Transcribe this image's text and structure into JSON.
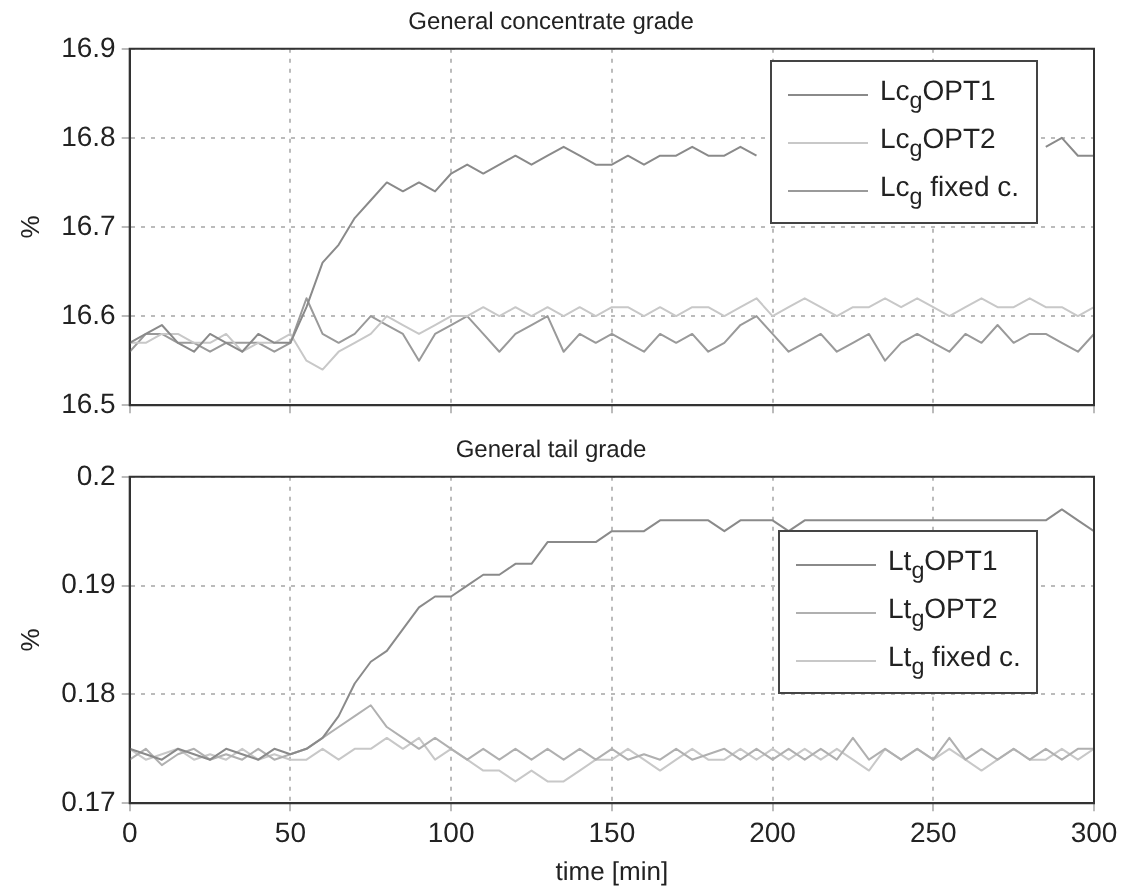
{
  "chart_data": [
    {
      "type": "line",
      "title": "General concentrate grade",
      "ylabel": "%",
      "x": [
        0,
        5,
        10,
        15,
        20,
        25,
        30,
        35,
        40,
        45,
        50,
        55,
        60,
        65,
        70,
        75,
        80,
        85,
        90,
        95,
        100,
        105,
        110,
        115,
        120,
        125,
        130,
        135,
        140,
        145,
        150,
        155,
        160,
        165,
        170,
        175,
        180,
        185,
        190,
        195,
        200,
        205,
        210,
        215,
        220,
        225,
        230,
        235,
        240,
        245,
        250,
        255,
        260,
        265,
        270,
        275,
        280,
        285,
        290,
        295,
        300
      ],
      "xlim": [
        0,
        300
      ],
      "xticks": [
        0,
        50,
        100,
        150,
        200,
        250,
        300
      ],
      "ylim": [
        16.5,
        16.9
      ],
      "yticks": [
        16.5,
        16.6,
        16.7,
        16.8,
        16.9
      ],
      "grid": true,
      "legend": "top right",
      "marker": "none",
      "tick_labels": "y",
      "series": [
        {
          "name": "Lc$_{g}$OPT1",
          "color": "#8a8a8a",
          "values": [
            16.57,
            16.58,
            16.59,
            16.57,
            16.56,
            16.58,
            16.57,
            16.56,
            16.58,
            16.57,
            16.57,
            16.61,
            16.66,
            16.68,
            16.71,
            16.73,
            16.75,
            16.74,
            16.75,
            16.74,
            16.76,
            16.77,
            16.76,
            16.77,
            16.78,
            16.77,
            16.78,
            16.79,
            16.78,
            16.77,
            16.77,
            16.78,
            16.77,
            16.78,
            16.78,
            16.79,
            16.78,
            16.78,
            16.79,
            16.78,
            null,
            null,
            null,
            null,
            null,
            null,
            null,
            null,
            null,
            null,
            null,
            null,
            null,
            null,
            null,
            null,
            null,
            16.79,
            16.8,
            16.78,
            16.78
          ]
        },
        {
          "name": "Lc$_{g}$OPT2",
          "color": "#c8c8c8",
          "values": [
            16.57,
            16.57,
            16.58,
            16.58,
            16.57,
            16.57,
            16.58,
            16.56,
            16.57,
            16.57,
            16.58,
            16.55,
            16.54,
            16.56,
            16.57,
            16.58,
            16.6,
            16.59,
            16.58,
            16.59,
            16.6,
            16.6,
            16.61,
            16.6,
            16.61,
            16.6,
            16.61,
            16.6,
            16.61,
            16.6,
            16.61,
            16.61,
            16.6,
            16.61,
            16.6,
            16.61,
            16.61,
            16.6,
            16.61,
            16.62,
            16.6,
            16.61,
            16.62,
            16.61,
            16.6,
            16.61,
            16.61,
            16.62,
            16.61,
            16.62,
            16.61,
            16.6,
            16.61,
            16.62,
            16.61,
            16.61,
            16.62,
            16.61,
            16.61,
            16.6,
            16.61
          ]
        },
        {
          "name": "Lc$_{g}$ fixed c.",
          "color": "#9a9a9a",
          "values": [
            16.56,
            16.58,
            16.58,
            16.57,
            16.57,
            16.56,
            16.57,
            16.57,
            16.57,
            16.56,
            16.57,
            16.62,
            16.58,
            16.57,
            16.58,
            16.6,
            16.59,
            16.58,
            16.55,
            16.58,
            16.59,
            16.6,
            16.58,
            16.56,
            16.58,
            16.59,
            16.6,
            16.56,
            16.58,
            16.57,
            16.58,
            16.57,
            16.56,
            16.58,
            16.57,
            16.58,
            16.56,
            16.57,
            16.59,
            16.6,
            16.58,
            16.56,
            16.57,
            16.58,
            16.56,
            16.57,
            16.58,
            16.55,
            16.57,
            16.58,
            16.57,
            16.56,
            16.58,
            16.57,
            16.59,
            16.57,
            16.58,
            16.58,
            16.57,
            16.56,
            16.58
          ]
        }
      ]
    },
    {
      "type": "line",
      "title": "General tail grade",
      "xlabel": "time [min]",
      "ylabel": "%",
      "x": [
        0,
        5,
        10,
        15,
        20,
        25,
        30,
        35,
        40,
        45,
        50,
        55,
        60,
        65,
        70,
        75,
        80,
        85,
        90,
        95,
        100,
        105,
        110,
        115,
        120,
        125,
        130,
        135,
        140,
        145,
        150,
        155,
        160,
        165,
        170,
        175,
        180,
        185,
        190,
        195,
        200,
        205,
        210,
        215,
        220,
        225,
        230,
        235,
        240,
        245,
        250,
        255,
        260,
        265,
        270,
        275,
        280,
        285,
        290,
        295,
        300
      ],
      "xlim": [
        0,
        300
      ],
      "xticks": [
        0,
        50,
        100,
        150,
        200,
        250,
        300
      ],
      "ylim": [
        0.17,
        0.2
      ],
      "yticks": [
        0.17,
        0.18,
        0.19,
        0.2
      ],
      "grid": true,
      "legend": "right",
      "marker": "none",
      "series": [
        {
          "name": "Lt$_{g}$OPT1",
          "color": "#8a8a8a",
          "values": [
            0.175,
            0.1745,
            0.174,
            0.175,
            0.1745,
            0.174,
            0.175,
            0.1745,
            0.174,
            0.175,
            0.1745,
            0.175,
            0.176,
            0.178,
            0.181,
            0.183,
            0.184,
            0.186,
            0.188,
            0.189,
            0.189,
            0.19,
            0.191,
            0.191,
            0.192,
            0.192,
            0.194,
            0.194,
            0.194,
            0.194,
            0.195,
            0.195,
            0.195,
            0.196,
            0.196,
            0.196,
            0.196,
            0.195,
            0.196,
            0.196,
            0.196,
            0.195,
            0.196,
            0.196,
            0.196,
            0.196,
            0.196,
            0.196,
            0.196,
            0.196,
            0.196,
            0.196,
            0.196,
            0.196,
            0.196,
            0.196,
            0.196,
            0.196,
            0.197,
            0.196,
            0.195
          ]
        },
        {
          "name": "Lt$_{g}$OPT2",
          "color": "#b0b0b0",
          "values": [
            0.174,
            0.175,
            0.1735,
            0.1745,
            0.175,
            0.174,
            0.1745,
            0.174,
            0.175,
            0.174,
            0.1745,
            0.175,
            0.176,
            0.177,
            0.178,
            0.179,
            0.177,
            0.176,
            0.175,
            0.176,
            0.175,
            0.174,
            0.175,
            0.174,
            0.175,
            0.174,
            0.175,
            0.174,
            0.175,
            0.174,
            0.175,
            0.174,
            0.1745,
            0.174,
            0.175,
            0.174,
            0.1745,
            0.175,
            0.174,
            0.175,
            0.174,
            0.175,
            0.174,
            0.175,
            0.174,
            0.176,
            0.174,
            0.175,
            0.174,
            0.175,
            0.174,
            0.176,
            0.174,
            0.175,
            0.174,
            0.175,
            0.174,
            0.175,
            0.174,
            0.175,
            0.175
          ]
        },
        {
          "name": "Lt$_{g}$ fixed c.",
          "color": "#c8c8c8",
          "values": [
            0.175,
            0.174,
            0.1745,
            0.175,
            0.174,
            0.1745,
            0.174,
            0.175,
            0.174,
            0.1745,
            0.174,
            0.174,
            0.175,
            0.174,
            0.175,
            0.175,
            0.176,
            0.175,
            0.176,
            0.174,
            0.175,
            0.174,
            0.173,
            0.173,
            0.172,
            0.173,
            0.172,
            0.172,
            0.173,
            0.174,
            0.174,
            0.175,
            0.174,
            0.173,
            0.174,
            0.175,
            0.174,
            0.174,
            0.175,
            0.174,
            0.175,
            0.174,
            0.175,
            0.174,
            0.175,
            0.174,
            0.173,
            0.175,
            0.174,
            0.175,
            0.174,
            0.175,
            0.174,
            0.173,
            0.174,
            0.175,
            0.174,
            0.174,
            0.175,
            0.174,
            0.175
          ]
        }
      ]
    }
  ]
}
